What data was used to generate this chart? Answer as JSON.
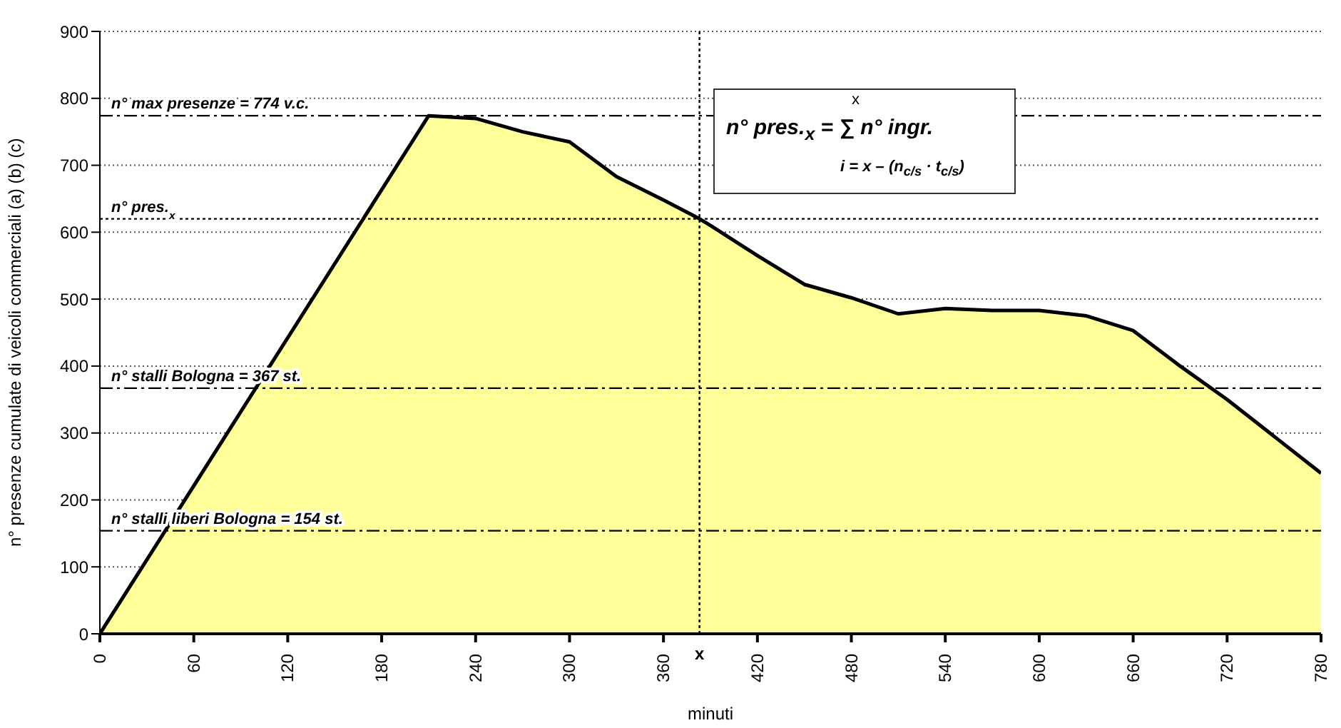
{
  "chart_data": {
    "type": "area",
    "xlabel": "minuti",
    "ylabel": "n° presenze cumulate di veicoli commerciali (a) (b) (c)",
    "x": [
      0,
      210,
      240,
      270,
      300,
      330,
      360,
      383,
      390,
      420,
      450,
      480,
      510,
      540,
      570,
      600,
      630,
      660,
      690,
      720,
      750,
      780
    ],
    "series": [
      {
        "color": "#ffff99",
        "values": [
          0,
          774,
          770,
          750,
          735,
          683,
          648,
          620,
          610,
          565,
          522,
          502,
          478,
          486,
          483,
          483,
          475,
          453,
          400,
          350,
          295,
          240
        ]
      }
    ],
    "xlim": [
      0,
      780
    ],
    "xticks": [
      0,
      60,
      120,
      180,
      240,
      300,
      360,
      420,
      480,
      540,
      600,
      660,
      720,
      780
    ],
    "ylim": [
      0,
      900
    ],
    "yticks": [
      0,
      100,
      200,
      300,
      400,
      500,
      600,
      700,
      800,
      900
    ],
    "grid": "y",
    "legend": false,
    "marker": "none",
    "line_style": "solid",
    "ref_lines": [
      {
        "axis": "y",
        "value": 774,
        "label": "n° max presenze = 774 v.c.",
        "line_style": "dashed",
        "color": "#000000"
      },
      {
        "axis": "y",
        "value": 620,
        "label": "n° pres.$_{x}$",
        "line_style": "dotted",
        "color": "#000000"
      },
      {
        "axis": "y",
        "value": 367,
        "label": "n° stalli Bologna = 367 st.",
        "line_style": "dashed",
        "color": "#000000"
      },
      {
        "axis": "y",
        "value": 154,
        "label": "n° stalli liberi Bologna = 154 st.",
        "line_style": "dashed",
        "color": "#000000"
      },
      {
        "axis": "x",
        "value": 383,
        "label": "x",
        "line_style": "dotted",
        "color": "#000000"
      }
    ],
    "annotations": [
      "n° pres.$_{x}$ = ∑ n° ingr.",
      "x",
      "i = x – (n$_{c/s}$ · t$_{c/s}$)"
    ]
  }
}
